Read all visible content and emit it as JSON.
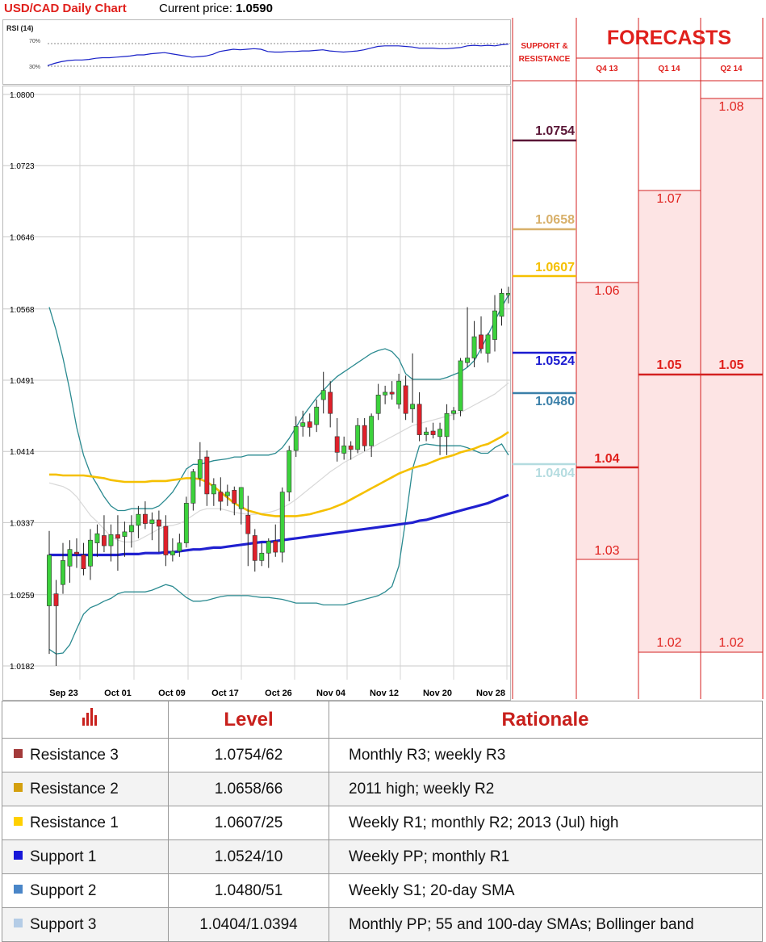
{
  "header": {
    "title": "USD/CAD Daily Chart",
    "price_label": "Current price:",
    "price_value": "1.0590"
  },
  "rsi": {
    "label": "RSI (14)",
    "upper_label": "70%",
    "lower_label": "30%",
    "line_color": "#1a22c8"
  },
  "forecasts_panel": {
    "title": "FORECASTS",
    "sr_header": "SUPPORT & RESISTANCE",
    "quarters": [
      "Q4 13",
      "Q1 14",
      "Q2 14"
    ],
    "q4_13": [
      "1.06",
      "1.04",
      "1.03"
    ],
    "q1_14": [
      "1.07",
      "1.05",
      "1.02"
    ],
    "q2_14": [
      "1.08",
      "1.05",
      "1.02"
    ]
  },
  "sr_levels": [
    {
      "value": "1.0754",
      "color": "#5a1636"
    },
    {
      "value": "1.0658",
      "color": "#d8b06a"
    },
    {
      "value": "1.0607",
      "color": "#f5c000"
    },
    {
      "value": "1.0524",
      "color": "#1a1ad0"
    },
    {
      "value": "1.0480",
      "color": "#3a7fa8"
    },
    {
      "value": "1.0404",
      "color": "#b4dce0"
    }
  ],
  "chart_data": {
    "type": "candlestick",
    "yticks": [
      "1.0800",
      "1.0723",
      "1.0646",
      "1.0568",
      "1.0491",
      "1.0414",
      "1.0337",
      "1.0259",
      "1.0182"
    ],
    "ylim": [
      1.0182,
      1.08
    ],
    "xticks": [
      "Sep 23",
      "Oct 01",
      "Oct 09",
      "Oct 17",
      "Oct 26",
      "Nov 04",
      "Nov 12",
      "Nov 20",
      "Nov 28"
    ],
    "candles": [
      {
        "o": 1.0247,
        "h": 1.0328,
        "l": 1.0195,
        "c": 1.0302
      },
      {
        "o": 1.026,
        "h": 1.0275,
        "l": 1.0182,
        "c": 1.0247
      },
      {
        "o": 1.027,
        "h": 1.0315,
        "l": 1.026,
        "c": 1.0296
      },
      {
        "o": 1.029,
        "h": 1.0318,
        "l": 1.0272,
        "c": 1.0308
      },
      {
        "o": 1.0305,
        "h": 1.032,
        "l": 1.0288,
        "c": 1.0303
      },
      {
        "o": 1.0302,
        "h": 1.0315,
        "l": 1.028,
        "c": 1.0287
      },
      {
        "o": 1.029,
        "h": 1.033,
        "l": 1.0275,
        "c": 1.0318
      },
      {
        "o": 1.0315,
        "h": 1.0335,
        "l": 1.03,
        "c": 1.0325
      },
      {
        "o": 1.0323,
        "h": 1.0345,
        "l": 1.0305,
        "c": 1.0312
      },
      {
        "o": 1.0312,
        "h": 1.0335,
        "l": 1.0295,
        "c": 1.0324
      },
      {
        "o": 1.0324,
        "h": 1.0345,
        "l": 1.0285,
        "c": 1.032
      },
      {
        "o": 1.0322,
        "h": 1.0338,
        "l": 1.03,
        "c": 1.0327
      },
      {
        "o": 1.0327,
        "h": 1.0345,
        "l": 1.031,
        "c": 1.0334
      },
      {
        "o": 1.0334,
        "h": 1.0355,
        "l": 1.032,
        "c": 1.0346
      },
      {
        "o": 1.0346,
        "h": 1.036,
        "l": 1.033,
        "c": 1.0336
      },
      {
        "o": 1.0336,
        "h": 1.0348,
        "l": 1.0318,
        "c": 1.034
      },
      {
        "o": 1.034,
        "h": 1.035,
        "l": 1.0305,
        "c": 1.0333
      },
      {
        "o": 1.0333,
        "h": 1.0345,
        "l": 1.029,
        "c": 1.0302
      },
      {
        "o": 1.0302,
        "h": 1.032,
        "l": 1.0295,
        "c": 1.0306
      },
      {
        "o": 1.0306,
        "h": 1.0325,
        "l": 1.03,
        "c": 1.0315
      },
      {
        "o": 1.0315,
        "h": 1.0365,
        "l": 1.031,
        "c": 1.0358
      },
      {
        "o": 1.0358,
        "h": 1.0395,
        "l": 1.035,
        "c": 1.0392
      },
      {
        "o": 1.0385,
        "h": 1.0424,
        "l": 1.0376,
        "c": 1.0405
      },
      {
        "o": 1.0408,
        "h": 1.0415,
        "l": 1.0355,
        "c": 1.0368
      },
      {
        "o": 1.0368,
        "h": 1.0385,
        "l": 1.0355,
        "c": 1.0378
      },
      {
        "o": 1.037,
        "h": 1.0386,
        "l": 1.035,
        "c": 1.036
      },
      {
        "o": 1.0366,
        "h": 1.0378,
        "l": 1.0355,
        "c": 1.037
      },
      {
        "o": 1.0372,
        "h": 1.0376,
        "l": 1.0345,
        "c": 1.0358
      },
      {
        "o": 1.0352,
        "h": 1.0375,
        "l": 1.0335,
        "c": 1.0375
      },
      {
        "o": 1.0345,
        "h": 1.0366,
        "l": 1.029,
        "c": 1.0325
      },
      {
        "o": 1.0323,
        "h": 1.033,
        "l": 1.0284,
        "c": 1.0296
      },
      {
        "o": 1.0296,
        "h": 1.0315,
        "l": 1.029,
        "c": 1.0304
      },
      {
        "o": 1.0304,
        "h": 1.032,
        "l": 1.0288,
        "c": 1.0317
      },
      {
        "o": 1.0317,
        "h": 1.0335,
        "l": 1.03,
        "c": 1.0305
      },
      {
        "o": 1.0305,
        "h": 1.0375,
        "l": 1.0294,
        "c": 1.037
      },
      {
        "o": 1.037,
        "h": 1.042,
        "l": 1.036,
        "c": 1.0415
      },
      {
        "o": 1.0415,
        "h": 1.0452,
        "l": 1.0408,
        "c": 1.0441
      },
      {
        "o": 1.0441,
        "h": 1.0458,
        "l": 1.043,
        "c": 1.0445
      },
      {
        "o": 1.0446,
        "h": 1.0455,
        "l": 1.043,
        "c": 1.044
      },
      {
        "o": 1.0443,
        "h": 1.047,
        "l": 1.0435,
        "c": 1.0462
      },
      {
        "o": 1.047,
        "h": 1.05,
        "l": 1.0455,
        "c": 1.048
      },
      {
        "o": 1.0478,
        "h": 1.049,
        "l": 1.044,
        "c": 1.0455
      },
      {
        "o": 1.043,
        "h": 1.045,
        "l": 1.0403,
        "c": 1.0413
      },
      {
        "o": 1.0412,
        "h": 1.043,
        "l": 1.0405,
        "c": 1.042
      },
      {
        "o": 1.042,
        "h": 1.0425,
        "l": 1.0405,
        "c": 1.0416
      },
      {
        "o": 1.0416,
        "h": 1.045,
        "l": 1.0412,
        "c": 1.0442
      },
      {
        "o": 1.0442,
        "h": 1.045,
        "l": 1.0414,
        "c": 1.042
      },
      {
        "o": 1.042,
        "h": 1.0455,
        "l": 1.0408,
        "c": 1.0452
      },
      {
        "o": 1.0455,
        "h": 1.0487,
        "l": 1.0448,
        "c": 1.0475
      },
      {
        "o": 1.0475,
        "h": 1.0485,
        "l": 1.0465,
        "c": 1.0478
      },
      {
        "o": 1.0478,
        "h": 1.049,
        "l": 1.047,
        "c": 1.0476
      },
      {
        "o": 1.0465,
        "h": 1.0498,
        "l": 1.046,
        "c": 1.049
      },
      {
        "o": 1.0485,
        "h": 1.0496,
        "l": 1.0448,
        "c": 1.0455
      },
      {
        "o": 1.046,
        "h": 1.052,
        "l": 1.0445,
        "c": 1.0465
      },
      {
        "o": 1.0465,
        "h": 1.0478,
        "l": 1.0425,
        "c": 1.0432
      },
      {
        "o": 1.0432,
        "h": 1.044,
        "l": 1.0425,
        "c": 1.0435
      },
      {
        "o": 1.0436,
        "h": 1.0445,
        "l": 1.0428,
        "c": 1.0432
      },
      {
        "o": 1.043,
        "h": 1.0445,
        "l": 1.041,
        "c": 1.0438
      },
      {
        "o": 1.043,
        "h": 1.0465,
        "l": 1.041,
        "c": 1.0455
      },
      {
        "o": 1.0455,
        "h": 1.0462,
        "l": 1.0448,
        "c": 1.0458
      },
      {
        "o": 1.0458,
        "h": 1.0515,
        "l": 1.0452,
        "c": 1.0512
      },
      {
        "o": 1.051,
        "h": 1.057,
        "l": 1.0505,
        "c": 1.0515
      },
      {
        "o": 1.0515,
        "h": 1.0555,
        "l": 1.0505,
        "c": 1.0538
      },
      {
        "o": 1.054,
        "h": 1.056,
        "l": 1.052,
        "c": 1.0525
      },
      {
        "o": 1.052,
        "h": 1.0542,
        "l": 1.051,
        "c": 1.054
      },
      {
        "o": 1.0535,
        "h": 1.0583,
        "l": 1.0522,
        "c": 1.0566
      },
      {
        "o": 1.056,
        "h": 1.059,
        "l": 1.055,
        "c": 1.0585
      },
      {
        "o": 1.0583,
        "h": 1.0592,
        "l": 1.0574,
        "c": 1.0585
      }
    ],
    "sma_20_like_bb_mid": [
      1.038,
      1.0378,
      1.0376,
      1.0372,
      1.0365,
      1.0355,
      1.0345,
      1.0338,
      1.033,
      1.0322,
      1.0318,
      1.0316,
      1.0316,
      1.0318,
      1.0322,
      1.0326,
      1.033,
      1.0333,
      1.0334,
      1.0336,
      1.034,
      1.0345,
      1.035,
      1.0352,
      1.0352,
      1.0352,
      1.035,
      1.0348,
      1.0347,
      1.0346,
      1.0346,
      1.0347,
      1.0348,
      1.035,
      1.0353,
      1.0357,
      1.0362,
      1.0368,
      1.0374,
      1.038,
      1.0386,
      1.0392,
      1.0397,
      1.0402,
      1.0406,
      1.041,
      1.0414,
      1.0418,
      1.0422,
      1.0426,
      1.043,
      1.0434,
      1.0438,
      1.0442,
      1.0444,
      1.0446,
      1.0448,
      1.045,
      1.0452,
      1.0454,
      1.0456,
      1.046,
      1.0464,
      1.0468,
      1.0472,
      1.0476,
      1.0482,
      1.0488
    ],
    "bb_upper": [
      1.057,
      1.0545,
      1.0515,
      1.048,
      1.044,
      1.041,
      1.039,
      1.0378,
      1.0365,
      1.0355,
      1.035,
      1.035,
      1.0352,
      1.0352,
      1.0352,
      1.0352,
      1.0355,
      1.0362,
      1.037,
      1.0382,
      1.0395,
      1.04,
      1.04,
      1.0402,
      1.0404,
      1.0405,
      1.0406,
      1.0408,
      1.0408,
      1.041,
      1.041,
      1.041,
      1.041,
      1.0412,
      1.0418,
      1.0428,
      1.044,
      1.0452,
      1.0462,
      1.0472,
      1.048,
      1.0488,
      1.0495,
      1.05,
      1.0505,
      1.051,
      1.0515,
      1.052,
      1.0523,
      1.0525,
      1.0522,
      1.0514,
      1.0498,
      1.0492,
      1.0492,
      1.0492,
      1.0492,
      1.0492,
      1.0494,
      1.0497,
      1.05,
      1.0505,
      1.0512,
      1.0525,
      1.054,
      1.0555,
      1.057,
      1.0583
    ],
    "bb_lower": [
      1.02,
      1.0195,
      1.0196,
      1.0205,
      1.0222,
      1.0238,
      1.0245,
      1.0248,
      1.0252,
      1.0255,
      1.026,
      1.0262,
      1.0262,
      1.0262,
      1.0262,
      1.0264,
      1.0267,
      1.027,
      1.0268,
      1.0262,
      1.0256,
      1.0252,
      1.0252,
      1.0253,
      1.0255,
      1.0257,
      1.0258,
      1.0258,
      1.0258,
      1.0258,
      1.0257,
      1.0256,
      1.0256,
      1.0255,
      1.0254,
      1.0252,
      1.025,
      1.025,
      1.025,
      1.025,
      1.0248,
      1.0248,
      1.0248,
      1.0248,
      1.025,
      1.0252,
      1.0254,
      1.0256,
      1.0258,
      1.0262,
      1.0268,
      1.029,
      1.034,
      1.0395,
      1.042,
      1.0422,
      1.0421,
      1.042,
      1.042,
      1.042,
      1.042,
      1.0418,
      1.0415,
      1.0412,
      1.0412,
      1.0418,
      1.0422,
      1.041
    ],
    "sma_55": [
      1.0389,
      1.0389,
      1.0388,
      1.0388,
      1.0388,
      1.0388,
      1.0387,
      1.0386,
      1.0385,
      1.0383,
      1.0382,
      1.0381,
      1.0381,
      1.0381,
      1.0381,
      1.0382,
      1.0382,
      1.0382,
      1.0383,
      1.0384,
      1.0385,
      1.0385,
      1.0384,
      1.0381,
      1.0376,
      1.037,
      1.0364,
      1.0358,
      1.0354,
      1.035,
      1.0348,
      1.0346,
      1.0345,
      1.0344,
      1.0344,
      1.0344,
      1.0344,
      1.0345,
      1.0346,
      1.0348,
      1.035,
      1.0352,
      1.0355,
      1.0358,
      1.0362,
      1.0366,
      1.037,
      1.0374,
      1.0378,
      1.0382,
      1.0386,
      1.039,
      1.0393,
      1.0396,
      1.0398,
      1.04,
      1.0403,
      1.0406,
      1.0408,
      1.041,
      1.0413,
      1.0415,
      1.0417,
      1.042,
      1.0422,
      1.0426,
      1.043,
      1.0435
    ],
    "sma_100": [
      1.0302,
      1.0302,
      1.0302,
      1.0302,
      1.0302,
      1.0302,
      1.0302,
      1.0302,
      1.0302,
      1.0302,
      1.0302,
      1.0303,
      1.0303,
      1.0303,
      1.0304,
      1.0304,
      1.0304,
      1.0305,
      1.0305,
      1.0306,
      1.0307,
      1.0308,
      1.0308,
      1.0309,
      1.031,
      1.031,
      1.0311,
      1.0312,
      1.0313,
      1.0314,
      1.0315,
      1.0316,
      1.0316,
      1.0317,
      1.0318,
      1.0319,
      1.032,
      1.0321,
      1.0322,
      1.0323,
      1.0324,
      1.0325,
      1.0326,
      1.0327,
      1.0328,
      1.0329,
      1.033,
      1.0331,
      1.0332,
      1.0333,
      1.0334,
      1.0335,
      1.0336,
      1.0337,
      1.0339,
      1.034,
      1.0342,
      1.0344,
      1.0346,
      1.0348,
      1.035,
      1.0352,
      1.0354,
      1.0356,
      1.0358,
      1.0361,
      1.0364,
      1.0367
    ],
    "rsi_values": [
      31,
      35,
      38,
      40,
      41,
      41,
      42,
      44,
      45,
      45,
      46,
      47,
      48,
      50,
      50,
      52,
      53,
      54,
      52,
      50,
      48,
      46,
      47,
      48,
      51,
      56,
      58,
      60,
      59,
      60,
      61,
      60,
      56,
      55,
      55,
      56,
      56,
      57,
      57,
      58,
      59,
      57,
      56,
      55,
      56,
      57,
      59,
      62,
      65,
      66,
      66,
      66,
      65,
      64,
      62,
      62,
      62,
      61,
      61,
      62,
      63,
      66,
      67,
      66,
      67,
      66,
      68,
      69
    ],
    "colors": {
      "bull": "#3cd23c",
      "bear": "#e0202a",
      "sma55": "#f5c000",
      "sma100": "#2020d0",
      "bb": "#2a8a90",
      "bbmid": "#d8d8d8"
    }
  },
  "table": {
    "header_icon": "bar-chart-icon",
    "col_level": "Level",
    "col_rationale": "Rationale",
    "rows": [
      {
        "name": "Resistance 3",
        "level": "1.0754/62",
        "rationale": "Monthly R3; weekly R3",
        "color": "#a33a3a"
      },
      {
        "name": "Resistance 2",
        "level": "1.0658/66",
        "rationale": "2011 high; weekly R2",
        "color": "#d4a00e"
      },
      {
        "name": "Resistance 1",
        "level": "1.0607/25",
        "rationale": "Weekly R1; monthly R2; 2013 (Jul) high",
        "color": "#ffd000"
      },
      {
        "name": "Support 1",
        "level": "1.0524/10",
        "rationale": "Weekly PP; monthly R1",
        "color": "#1616d8"
      },
      {
        "name": "Support 2",
        "level": "1.0480/51",
        "rationale": "Weekly S1; 20-day SMA",
        "color": "#4a86c8"
      },
      {
        "name": "Support 3",
        "level": "1.0404/1.0394",
        "rationale": "Monthly PP; 55 and 100-day SMAs; Bollinger band",
        "color": "#b4cce6"
      }
    ]
  }
}
